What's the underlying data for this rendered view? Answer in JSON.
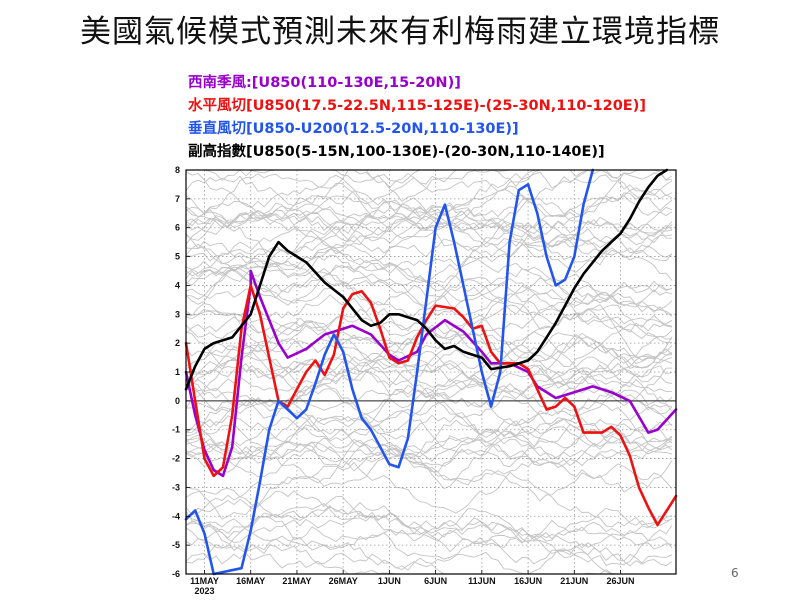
{
  "slide": {
    "title": "美國氣候模式預測未來有利梅雨建立環境指標",
    "page_number": "6"
  },
  "chart_data": {
    "type": "line",
    "xlabels": [
      "11MAY",
      "16MAY",
      "21MAY",
      "26MAY",
      "1JUN",
      "6JUN",
      "11JUN",
      "16JUN",
      "21JUN",
      "26JUN"
    ],
    "year_label": "2023",
    "ylim": [
      -6,
      8
    ],
    "yticks": [
      -6,
      -5,
      -4,
      -3,
      -2,
      -1,
      0,
      1,
      2,
      3,
      4,
      5,
      6,
      7,
      8
    ],
    "grid": true,
    "x_start": "2023-05-09",
    "x_end": "2023-07-01",
    "series": [
      {
        "name": "西南季風:[U850(110-130E,15-20N)]",
        "color": "#9900cc",
        "points": [
          [
            "2023-05-09",
            1.0
          ],
          [
            "2023-05-10",
            -0.5
          ],
          [
            "2023-05-11",
            -1.7
          ],
          [
            "2023-05-12",
            -2.4
          ],
          [
            "2023-05-13",
            -2.6
          ],
          [
            "2023-05-14",
            -1.6
          ],
          [
            "2023-05-15",
            1.5
          ],
          [
            "2023-05-16",
            4.0
          ],
          [
            "2023-05-16",
            4.5
          ],
          [
            "2023-05-17",
            3.6
          ],
          [
            "2023-05-19",
            2.0
          ],
          [
            "2023-05-20",
            1.5
          ],
          [
            "2023-05-22",
            1.8
          ],
          [
            "2023-05-24",
            2.3
          ],
          [
            "2023-05-26",
            2.5
          ],
          [
            "2023-05-27",
            2.6
          ],
          [
            "2023-05-29",
            2.3
          ],
          [
            "2023-05-31",
            1.6
          ],
          [
            "2023-06-01",
            1.4
          ],
          [
            "2023-06-03",
            1.7
          ],
          [
            "2023-06-04",
            2.3
          ],
          [
            "2023-06-06",
            2.8
          ],
          [
            "2023-06-08",
            2.4
          ],
          [
            "2023-06-10",
            1.7
          ],
          [
            "2023-06-11",
            1.3
          ],
          [
            "2023-06-13",
            1.3
          ],
          [
            "2023-06-15",
            1.0
          ],
          [
            "2023-06-16",
            0.5
          ],
          [
            "2023-06-18",
            0.1
          ],
          [
            "2023-06-20",
            0.3
          ],
          [
            "2023-06-22",
            0.5
          ],
          [
            "2023-06-24",
            0.3
          ],
          [
            "2023-06-26",
            0.0
          ],
          [
            "2023-06-28",
            -1.1
          ],
          [
            "2023-06-29",
            -1.0
          ],
          [
            "2023-07-01",
            -0.3
          ]
        ]
      },
      {
        "name": "水平風切[U850(17.5-22.5N,115-125E)-(25-30N,110-120E)]",
        "color": "#ee1111",
        "points": [
          [
            "2023-05-09",
            2.0
          ],
          [
            "2023-05-10",
            0.0
          ],
          [
            "2023-05-11",
            -2.0
          ],
          [
            "2023-05-12",
            -2.6
          ],
          [
            "2023-05-13",
            -2.3
          ],
          [
            "2023-05-14",
            -0.5
          ],
          [
            "2023-05-15",
            2.5
          ],
          [
            "2023-05-16",
            4.0
          ],
          [
            "2023-05-17",
            3.0
          ],
          [
            "2023-05-18",
            1.5
          ],
          [
            "2023-05-19",
            0.0
          ],
          [
            "2023-05-20",
            -0.2
          ],
          [
            "2023-05-21",
            0.4
          ],
          [
            "2023-05-22",
            1.0
          ],
          [
            "2023-05-23",
            1.4
          ],
          [
            "2023-05-24",
            0.9
          ],
          [
            "2023-05-25",
            1.6
          ],
          [
            "2023-05-26",
            3.2
          ],
          [
            "2023-05-27",
            3.7
          ],
          [
            "2023-05-28",
            3.8
          ],
          [
            "2023-05-29",
            3.4
          ],
          [
            "2023-05-30",
            2.5
          ],
          [
            "2023-05-31",
            1.5
          ],
          [
            "2023-06-01",
            1.3
          ],
          [
            "2023-06-02",
            1.4
          ],
          [
            "2023-06-03",
            2.2
          ],
          [
            "2023-06-04",
            2.8
          ],
          [
            "2023-06-05",
            3.3
          ],
          [
            "2023-06-07",
            3.2
          ],
          [
            "2023-06-08",
            2.9
          ],
          [
            "2023-06-09",
            2.5
          ],
          [
            "2023-06-10",
            2.6
          ],
          [
            "2023-06-11",
            1.7
          ],
          [
            "2023-06-12",
            1.3
          ],
          [
            "2023-06-13",
            1.3
          ],
          [
            "2023-06-14",
            1.3
          ],
          [
            "2023-06-15",
            1.1
          ],
          [
            "2023-06-16",
            0.4
          ],
          [
            "2023-06-17",
            -0.3
          ],
          [
            "2023-06-18",
            -0.2
          ],
          [
            "2023-06-19",
            0.1
          ],
          [
            "2023-06-20",
            -0.2
          ],
          [
            "2023-06-21",
            -1.1
          ],
          [
            "2023-06-23",
            -1.1
          ],
          [
            "2023-06-24",
            -0.9
          ],
          [
            "2023-06-25",
            -1.2
          ],
          [
            "2023-06-26",
            -1.9
          ],
          [
            "2023-06-27",
            -3.0
          ],
          [
            "2023-06-28",
            -3.7
          ],
          [
            "2023-06-29",
            -4.3
          ],
          [
            "2023-06-30",
            -3.8
          ],
          [
            "2023-07-01",
            -3.3
          ]
        ]
      },
      {
        "name": "垂直風切[U850-U200(12.5-20N,110-130E)]",
        "color": "#2255ee",
        "points": [
          [
            "2023-05-09",
            -4.1
          ],
          [
            "2023-05-10",
            -3.8
          ],
          [
            "2023-05-11",
            -4.6
          ],
          [
            "2023-05-12",
            -6.0
          ],
          [
            "2023-05-15",
            -5.8
          ],
          [
            "2023-05-16",
            -4.5
          ],
          [
            "2023-05-17",
            -2.8
          ],
          [
            "2023-05-18",
            -1.0
          ],
          [
            "2023-05-19",
            0.0
          ],
          [
            "2023-05-20",
            -0.3
          ],
          [
            "2023-05-21",
            -0.6
          ],
          [
            "2023-05-22",
            -0.3
          ],
          [
            "2023-05-23",
            0.6
          ],
          [
            "2023-05-24",
            1.6
          ],
          [
            "2023-05-25",
            2.3
          ],
          [
            "2023-05-26",
            1.7
          ],
          [
            "2023-05-27",
            0.4
          ],
          [
            "2023-05-28",
            -0.6
          ],
          [
            "2023-05-29",
            -1.0
          ],
          [
            "2023-05-30",
            -1.6
          ],
          [
            "2023-05-31",
            -2.2
          ],
          [
            "2023-06-01",
            -2.3
          ],
          [
            "2023-06-02",
            -1.3
          ],
          [
            "2023-06-03",
            1.0
          ],
          [
            "2023-06-04",
            3.5
          ],
          [
            "2023-06-05",
            6.0
          ],
          [
            "2023-06-06",
            6.8
          ],
          [
            "2023-06-07",
            5.5
          ],
          [
            "2023-06-08",
            4.0
          ],
          [
            "2023-06-09",
            2.5
          ],
          [
            "2023-06-10",
            1.0
          ],
          [
            "2023-06-11",
            -0.2
          ],
          [
            "2023-06-12",
            1.0
          ],
          [
            "2023-06-13",
            5.5
          ],
          [
            "2023-06-14",
            7.3
          ],
          [
            "2023-06-15",
            7.5
          ],
          [
            "2023-06-16",
            6.5
          ],
          [
            "2023-06-17",
            5.0
          ],
          [
            "2023-06-18",
            4.0
          ],
          [
            "2023-06-19",
            4.2
          ],
          [
            "2023-06-20",
            5.0
          ],
          [
            "2023-06-21",
            6.8
          ],
          [
            "2023-06-22",
            8.0
          ]
        ]
      },
      {
        "name": "副高指數[U850(5-15N,100-130E)-(20-30N,110-140E)]",
        "color": "#000000",
        "points": [
          [
            "2023-05-09",
            0.4
          ],
          [
            "2023-05-10",
            1.2
          ],
          [
            "2023-05-11",
            1.8
          ],
          [
            "2023-05-12",
            2.0
          ],
          [
            "2023-05-14",
            2.2
          ],
          [
            "2023-05-15",
            2.6
          ],
          [
            "2023-05-16",
            3.0
          ],
          [
            "2023-05-17",
            4.0
          ],
          [
            "2023-05-18",
            5.0
          ],
          [
            "2023-05-19",
            5.5
          ],
          [
            "2023-05-20",
            5.2
          ],
          [
            "2023-05-22",
            4.8
          ],
          [
            "2023-05-24",
            4.1
          ],
          [
            "2023-05-26",
            3.6
          ],
          [
            "2023-05-28",
            2.8
          ],
          [
            "2023-05-29",
            2.6
          ],
          [
            "2023-05-30",
            2.7
          ],
          [
            "2023-05-31",
            3.0
          ],
          [
            "2023-06-01",
            3.0
          ],
          [
            "2023-06-02",
            2.9
          ],
          [
            "2023-06-03",
            2.8
          ],
          [
            "2023-06-04",
            2.5
          ],
          [
            "2023-06-05",
            2.1
          ],
          [
            "2023-06-06",
            1.8
          ],
          [
            "2023-06-07",
            1.9
          ],
          [
            "2023-06-08",
            1.7
          ],
          [
            "2023-06-09",
            1.6
          ],
          [
            "2023-06-10",
            1.5
          ],
          [
            "2023-06-11",
            1.1
          ],
          [
            "2023-06-13",
            1.2
          ],
          [
            "2023-06-15",
            1.4
          ],
          [
            "2023-06-16",
            1.7
          ],
          [
            "2023-06-17",
            2.2
          ],
          [
            "2023-06-18",
            2.7
          ],
          [
            "2023-06-19",
            3.3
          ],
          [
            "2023-06-20",
            3.9
          ],
          [
            "2023-06-21",
            4.4
          ],
          [
            "2023-06-22",
            4.8
          ],
          [
            "2023-06-23",
            5.2
          ],
          [
            "2023-06-24",
            5.5
          ],
          [
            "2023-06-25",
            5.8
          ],
          [
            "2023-06-26",
            6.3
          ],
          [
            "2023-06-27",
            6.9
          ],
          [
            "2023-06-28",
            7.4
          ],
          [
            "2023-06-29",
            7.8
          ],
          [
            "2023-06-30",
            8.0
          ]
        ]
      }
    ]
  }
}
